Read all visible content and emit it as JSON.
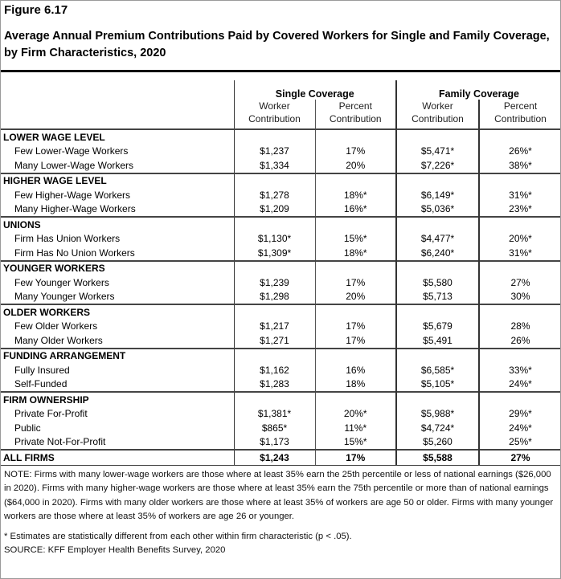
{
  "figure_label": "Figure 6.17",
  "title": "Average Annual Premium Contributions Paid by Covered Workers for Single and Family Coverage, by Firm Characteristics, 2020",
  "headers": {
    "single": "Single Coverage",
    "family": "Family Coverage",
    "worker_contribution": [
      "Worker",
      "Contribution"
    ],
    "percent_contribution": [
      "Percent",
      "Contribution"
    ]
  },
  "sections": [
    {
      "title": "LOWER WAGE LEVEL",
      "rows": [
        {
          "label": "Few Lower-Wage Workers",
          "single_worker": "$1,237",
          "single_pct": "17%",
          "family_worker": "$5,471*",
          "family_pct": "26%*"
        },
        {
          "label": "Many Lower-Wage Workers",
          "single_worker": "$1,334",
          "single_pct": "20%",
          "family_worker": "$7,226*",
          "family_pct": "38%*"
        }
      ]
    },
    {
      "title": "HIGHER WAGE LEVEL",
      "rows": [
        {
          "label": "Few Higher-Wage Workers",
          "single_worker": "$1,278",
          "single_pct": "18%*",
          "family_worker": "$6,149*",
          "family_pct": "31%*"
        },
        {
          "label": "Many Higher-Wage Workers",
          "single_worker": "$1,209",
          "single_pct": "16%*",
          "family_worker": "$5,036*",
          "family_pct": "23%*"
        }
      ]
    },
    {
      "title": "UNIONS",
      "rows": [
        {
          "label": "Firm Has Union Workers",
          "single_worker": "$1,130*",
          "single_pct": "15%*",
          "family_worker": "$4,477*",
          "family_pct": "20%*"
        },
        {
          "label": "Firm Has No Union Workers",
          "single_worker": "$1,309*",
          "single_pct": "18%*",
          "family_worker": "$6,240*",
          "family_pct": "31%*"
        }
      ]
    },
    {
      "title": "YOUNGER WORKERS",
      "rows": [
        {
          "label": "Few Younger Workers",
          "single_worker": "$1,239",
          "single_pct": "17%",
          "family_worker": "$5,580",
          "family_pct": "27%"
        },
        {
          "label": "Many Younger Workers",
          "single_worker": "$1,298",
          "single_pct": "20%",
          "family_worker": "$5,713",
          "family_pct": "30%"
        }
      ]
    },
    {
      "title": "OLDER WORKERS",
      "rows": [
        {
          "label": "Few Older Workers",
          "single_worker": "$1,217",
          "single_pct": "17%",
          "family_worker": "$5,679",
          "family_pct": "28%"
        },
        {
          "label": "Many Older Workers",
          "single_worker": "$1,271",
          "single_pct": "17%",
          "family_worker": "$5,491",
          "family_pct": "26%"
        }
      ]
    },
    {
      "title": "FUNDING ARRANGEMENT",
      "rows": [
        {
          "label": "Fully Insured",
          "single_worker": "$1,162",
          "single_pct": "16%",
          "family_worker": "$6,585*",
          "family_pct": "33%*"
        },
        {
          "label": "Self-Funded",
          "single_worker": "$1,283",
          "single_pct": "18%",
          "family_worker": "$5,105*",
          "family_pct": "24%*"
        }
      ]
    },
    {
      "title": "FIRM OWNERSHIP",
      "rows": [
        {
          "label": "Private For-Profit",
          "single_worker": "$1,381*",
          "single_pct": "20%*",
          "family_worker": "$5,988*",
          "family_pct": "29%*"
        },
        {
          "label": "Public",
          "single_worker": "$865*",
          "single_pct": "11%*",
          "family_worker": "$4,724*",
          "family_pct": "24%*"
        },
        {
          "label": "Private Not-For-Profit",
          "single_worker": "$1,173",
          "single_pct": "15%*",
          "family_worker": "$5,260",
          "family_pct": "25%*"
        }
      ]
    }
  ],
  "all_firms": {
    "label": "ALL FIRMS",
    "single_worker": "$1,243",
    "single_pct": "17%",
    "family_worker": "$5,588",
    "family_pct": "27%"
  },
  "note": "NOTE: Firms with many lower-wage workers are those where at least 35% earn the 25th percentile or less of national earnings ($26,000 in 2020). Firms with many higher-wage workers are those where at least 35% earn the 75th percentile or more than of national earnings ($64,000 in 2020). Firms with many older workers are those where at least 35% of workers are age 50 or older. Firms with many younger workers are those where at least 35% of workers are age 26 or younger.",
  "significance_note": "* Estimates are statistically different from each other within firm characteristic (p < .05).",
  "source": "SOURCE: KFF Employer Health Benefits Survey, 2020"
}
